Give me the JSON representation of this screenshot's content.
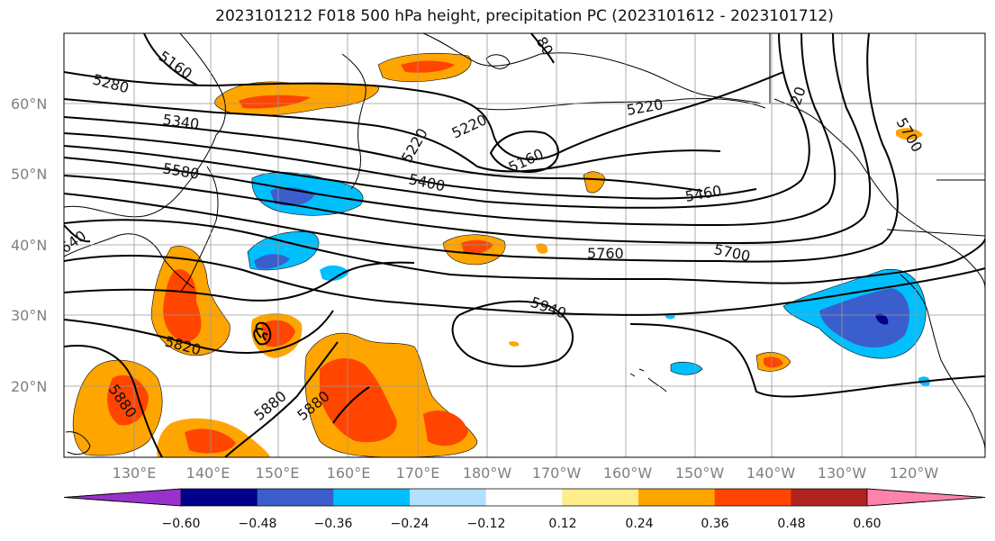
{
  "title": "2023101212 F018 500 hPa height, precipitation PC (2023101612 - 2023101712)",
  "map": {
    "latitude_labels": [
      "60°N",
      "50°N",
      "40°N",
      "30°N",
      "20°N"
    ],
    "longitude_labels": [
      "130°E",
      "140°E",
      "150°E",
      "160°E",
      "170°E",
      "180°W",
      "170°W",
      "160°W",
      "150°W",
      "140°W",
      "130°W",
      "120°W"
    ],
    "contour_labels": [
      "5160",
      "5280",
      "5340",
      "5580",
      "5220",
      "5220",
      "5160",
      "5400",
      "5220",
      "5460",
      "5700",
      "5760",
      "5700",
      "5940",
      "5820",
      "5880",
      "5880",
      "5880",
      "640",
      "20",
      "80"
    ]
  },
  "colorbar": {
    "tick_labels": [
      "−0.60",
      "−0.48",
      "−0.36",
      "−0.24",
      "−0.12",
      "0.12",
      "0.24",
      "0.36",
      "0.48",
      "0.60"
    ],
    "colors": [
      "#9932cc",
      "#00008b",
      "#3a5fcd",
      "#00bfff",
      "#b0e2ff",
      "#ffffff",
      "#ffec8b",
      "#ffa500",
      "#ff4500",
      "#b22222",
      "#ff82ab"
    ]
  }
}
